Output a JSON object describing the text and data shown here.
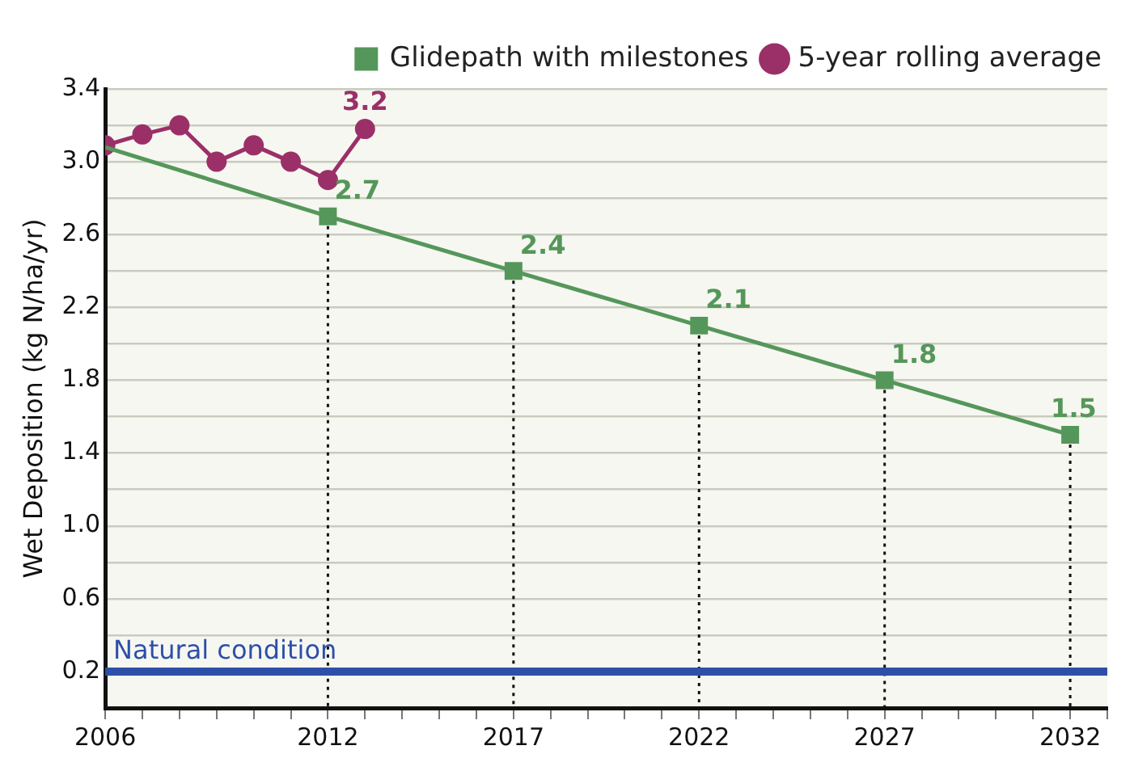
{
  "chart_data": {
    "type": "line",
    "ylabel": "Wet Deposition (kg N/ha/yr)",
    "series": [
      {
        "name": "Glidepath with milestones",
        "color": "#55975a",
        "marker": "square",
        "x": [
          2006,
          2012,
          2017,
          2022,
          2027,
          2032
        ],
        "values": [
          3.08,
          2.7,
          2.4,
          2.1,
          1.8,
          1.5
        ],
        "value_labels": [
          null,
          "2.7",
          "2.4",
          "2.1",
          "1.8",
          "1.5"
        ]
      },
      {
        "name": "5-year rolling average",
        "color": "#9b3068",
        "marker": "circle",
        "x": [
          2006,
          2007,
          2008,
          2009,
          2010,
          2011,
          2012,
          2013
        ],
        "values": [
          3.09,
          3.15,
          3.2,
          3.0,
          3.09,
          3.0,
          2.9,
          3.18
        ],
        "value_labels": [
          null,
          null,
          null,
          null,
          null,
          null,
          null,
          "3.2"
        ]
      }
    ],
    "xlim": [
      2006,
      2033
    ],
    "xticks": [
      2006,
      {
        "value": 2007,
        "label": null
      },
      {
        "value": 2008,
        "label": null
      },
      {
        "value": 2009,
        "label": null
      },
      {
        "value": 2010,
        "label": null
      },
      {
        "value": 2011,
        "label": null
      },
      2012,
      {
        "value": 2013,
        "label": null
      },
      {
        "value": 2014,
        "label": null
      },
      {
        "value": 2015,
        "label": null
      },
      {
        "value": 2016,
        "label": null
      },
      2017,
      {
        "value": 2018,
        "label": null
      },
      {
        "value": 2019,
        "label": null
      },
      {
        "value": 2020,
        "label": null
      },
      {
        "value": 2021,
        "label": null
      },
      2022,
      {
        "value": 2023,
        "label": null
      },
      {
        "value": 2024,
        "label": null
      },
      {
        "value": 2025,
        "label": null
      },
      {
        "value": 2026,
        "label": null
      },
      2027,
      {
        "value": 2028,
        "label": null
      },
      {
        "value": 2029,
        "label": null
      },
      {
        "value": 2030,
        "label": null
      },
      {
        "value": 2031,
        "label": null
      },
      2032,
      {
        "value": 2033,
        "label": null
      }
    ],
    "ylim": [
      0,
      3.4
    ],
    "yticks": [
      0.2,
      {
        "value": 0.4,
        "label": null
      },
      0.6,
      {
        "value": 0.8,
        "label": null
      },
      {
        "value": 1.0,
        "label": "1.0"
      },
      {
        "value": 1.2,
        "label": null
      },
      1.4,
      {
        "value": 1.6,
        "label": null
      },
      1.8,
      {
        "value": 2.0,
        "label": null
      },
      2.2,
      {
        "value": 2.4,
        "label": null
      },
      2.6,
      {
        "value": 2.8,
        "label": null
      },
      {
        "value": 3.0,
        "label": "3.0"
      },
      {
        "value": 3.2,
        "label": null
      },
      3.4
    ],
    "ref_lines": [
      {
        "axis": "y",
        "value": 0.2,
        "label": "Natural condition",
        "color": "#2e4fa8"
      }
    ],
    "grid": "y",
    "legend": "top right"
  }
}
